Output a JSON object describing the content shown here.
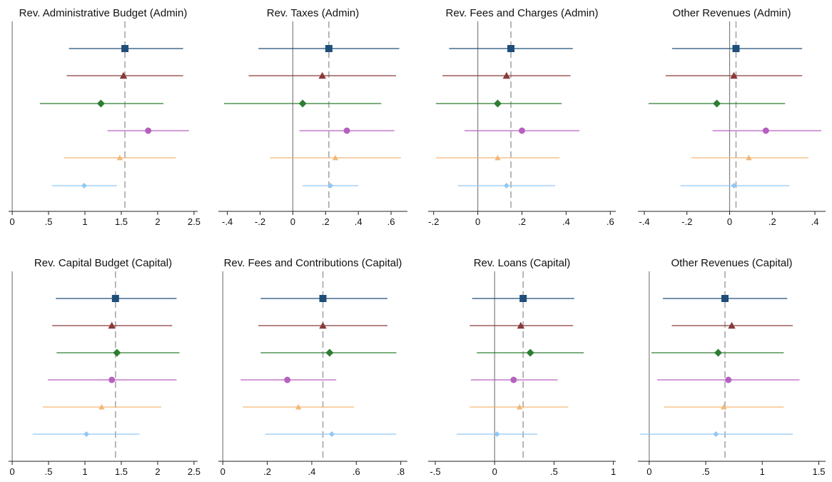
{
  "chart_data": [
    {
      "type": "coefficient_plot",
      "title": "Rev. Administrative Budget (Admin)",
      "xlim": [
        -0.05,
        2.55
      ],
      "ticks": [
        0,
        0.5,
        1,
        1.5,
        2,
        2.5
      ],
      "tick_labels": [
        "0",
        ".5",
        "1",
        "1.5",
        "2",
        "2.5"
      ],
      "reference_line": 1.55,
      "points": [
        {
          "estimate": 1.55,
          "ci_low": 0.78,
          "ci_high": 2.35
        },
        {
          "estimate": 1.53,
          "ci_low": 0.75,
          "ci_high": 2.35
        },
        {
          "estimate": 1.22,
          "ci_low": 0.38,
          "ci_high": 2.08
        },
        {
          "estimate": 1.87,
          "ci_low": 1.31,
          "ci_high": 2.43
        },
        {
          "estimate": 1.48,
          "ci_low": 0.71,
          "ci_high": 2.25
        },
        {
          "estimate": 0.99,
          "ci_low": 0.55,
          "ci_high": 1.44
        }
      ]
    },
    {
      "type": "coefficient_plot",
      "title": "Rev. Taxes (Admin)",
      "xlim": [
        -0.455,
        0.7
      ],
      "ticks": [
        -0.4,
        -0.2,
        0,
        0.2,
        0.4,
        0.6
      ],
      "tick_labels": [
        "-.4",
        "-.2",
        "0",
        ".2",
        ".4",
        ".6"
      ],
      "reference_line": 0.22,
      "points": [
        {
          "estimate": 0.22,
          "ci_low": -0.21,
          "ci_high": 0.65
        },
        {
          "estimate": 0.18,
          "ci_low": -0.27,
          "ci_high": 0.63
        },
        {
          "estimate": 0.06,
          "ci_low": -0.42,
          "ci_high": 0.54
        },
        {
          "estimate": 0.33,
          "ci_low": 0.04,
          "ci_high": 0.62
        },
        {
          "estimate": 0.26,
          "ci_low": -0.14,
          "ci_high": 0.66
        },
        {
          "estimate": 0.23,
          "ci_low": 0.06,
          "ci_high": 0.4
        }
      ]
    },
    {
      "type": "coefficient_plot",
      "title": "Rev. Fees and Charges (Admin)",
      "xlim": [
        -0.225,
        0.625
      ],
      "ticks": [
        -0.2,
        0,
        0.2,
        0.4,
        0.6
      ],
      "tick_labels": [
        "-.2",
        "0",
        ".2",
        ".4",
        ".6"
      ],
      "reference_line": 0.15,
      "points": [
        {
          "estimate": 0.15,
          "ci_low": -0.13,
          "ci_high": 0.43
        },
        {
          "estimate": 0.13,
          "ci_low": -0.16,
          "ci_high": 0.42
        },
        {
          "estimate": 0.09,
          "ci_low": -0.19,
          "ci_high": 0.38
        },
        {
          "estimate": 0.2,
          "ci_low": -0.06,
          "ci_high": 0.46
        },
        {
          "estimate": 0.09,
          "ci_low": -0.19,
          "ci_high": 0.37
        },
        {
          "estimate": 0.13,
          "ci_low": -0.09,
          "ci_high": 0.35
        }
      ]
    },
    {
      "type": "coefficient_plot",
      "title": "Other Revenues (Admin)",
      "xlim": [
        -0.43,
        0.45
      ],
      "ticks": [
        -0.4,
        -0.2,
        0,
        0.2,
        0.4
      ],
      "tick_labels": [
        "-.4",
        "-.2",
        "0",
        ".2",
        ".4"
      ],
      "reference_line": 0.03,
      "points": [
        {
          "estimate": 0.03,
          "ci_low": -0.27,
          "ci_high": 0.34
        },
        {
          "estimate": 0.02,
          "ci_low": -0.3,
          "ci_high": 0.34
        },
        {
          "estimate": -0.06,
          "ci_low": -0.38,
          "ci_high": 0.26
        },
        {
          "estimate": 0.17,
          "ci_low": -0.08,
          "ci_high": 0.43
        },
        {
          "estimate": 0.09,
          "ci_low": -0.18,
          "ci_high": 0.37
        },
        {
          "estimate": 0.02,
          "ci_low": -0.23,
          "ci_high": 0.28
        }
      ]
    },
    {
      "type": "coefficient_plot",
      "title": "Rev. Capital Budget (Capital)",
      "xlim": [
        -0.05,
        2.55
      ],
      "ticks": [
        0,
        0.5,
        1,
        1.5,
        2,
        2.5
      ],
      "tick_labels": [
        "0",
        ".5",
        "1",
        "1.5",
        "2",
        "2.5"
      ],
      "reference_line": 1.42,
      "points": [
        {
          "estimate": 1.42,
          "ci_low": 0.6,
          "ci_high": 2.26
        },
        {
          "estimate": 1.37,
          "ci_low": 0.55,
          "ci_high": 2.2
        },
        {
          "estimate": 1.44,
          "ci_low": 0.61,
          "ci_high": 2.3
        },
        {
          "estimate": 1.37,
          "ci_low": 0.49,
          "ci_high": 2.26
        },
        {
          "estimate": 1.23,
          "ci_low": 0.42,
          "ci_high": 2.05
        },
        {
          "estimate": 1.02,
          "ci_low": 0.28,
          "ci_high": 1.75
        }
      ]
    },
    {
      "type": "coefficient_plot",
      "title": "Rev. Fees and Contributions (Capital)",
      "xlim": [
        -0.02,
        0.83
      ],
      "ticks": [
        0,
        0.2,
        0.4,
        0.6,
        0.8
      ],
      "tick_labels": [
        "0",
        ".2",
        ".4",
        ".6",
        ".8"
      ],
      "reference_line": 0.45,
      "points": [
        {
          "estimate": 0.45,
          "ci_low": 0.17,
          "ci_high": 0.74
        },
        {
          "estimate": 0.45,
          "ci_low": 0.16,
          "ci_high": 0.74
        },
        {
          "estimate": 0.48,
          "ci_low": 0.17,
          "ci_high": 0.78
        },
        {
          "estimate": 0.29,
          "ci_low": 0.08,
          "ci_high": 0.51
        },
        {
          "estimate": 0.34,
          "ci_low": 0.09,
          "ci_high": 0.59
        },
        {
          "estimate": 0.49,
          "ci_low": 0.19,
          "ci_high": 0.78
        }
      ]
    },
    {
      "type": "coefficient_plot",
      "title": "Rev. Loans (Capital)",
      "xlim": [
        -0.56,
        1.02
      ],
      "ticks": [
        -0.5,
        0,
        0.5,
        1
      ],
      "tick_labels": [
        "-.5",
        "0",
        ".5",
        "1"
      ],
      "reference_line": 0.24,
      "points": [
        {
          "estimate": 0.24,
          "ci_low": -0.19,
          "ci_high": 0.67
        },
        {
          "estimate": 0.22,
          "ci_low": -0.21,
          "ci_high": 0.66
        },
        {
          "estimate": 0.3,
          "ci_low": -0.15,
          "ci_high": 0.75
        },
        {
          "estimate": 0.16,
          "ci_low": -0.2,
          "ci_high": 0.53
        },
        {
          "estimate": 0.21,
          "ci_low": -0.21,
          "ci_high": 0.62
        },
        {
          "estimate": 0.02,
          "ci_low": -0.32,
          "ci_high": 0.36
        }
      ]
    },
    {
      "type": "coefficient_plot",
      "title": "Other Revenues (Capital)",
      "xlim": [
        -0.1,
        1.56
      ],
      "ticks": [
        0,
        0.5,
        1,
        1.5
      ],
      "tick_labels": [
        "0",
        ".5",
        "1",
        "1.5"
      ],
      "reference_line": 0.67,
      "points": [
        {
          "estimate": 0.67,
          "ci_low": 0.12,
          "ci_high": 1.22
        },
        {
          "estimate": 0.73,
          "ci_low": 0.2,
          "ci_high": 1.27
        },
        {
          "estimate": 0.61,
          "ci_low": 0.02,
          "ci_high": 1.19
        },
        {
          "estimate": 0.7,
          "ci_low": 0.07,
          "ci_high": 1.33
        },
        {
          "estimate": 0.66,
          "ci_low": 0.13,
          "ci_high": 1.19
        },
        {
          "estimate": 0.59,
          "ci_low": -0.08,
          "ci_high": 1.27
        }
      ]
    }
  ],
  "series_styles": [
    {
      "color": "#1f4e79",
      "marker": "square"
    },
    {
      "color": "#8b3a3a",
      "marker": "triangle"
    },
    {
      "color": "#2e7d32",
      "marker": "diamond"
    },
    {
      "color": "#b660c0",
      "marker": "circle"
    },
    {
      "color": "#f2b777",
      "marker": "triangle"
    },
    {
      "color": "#90c8f5",
      "marker": "diamond"
    }
  ],
  "colors": {
    "axis": "#222222",
    "zero_line": "#808080",
    "reference_line": "#a6a6a6"
  }
}
